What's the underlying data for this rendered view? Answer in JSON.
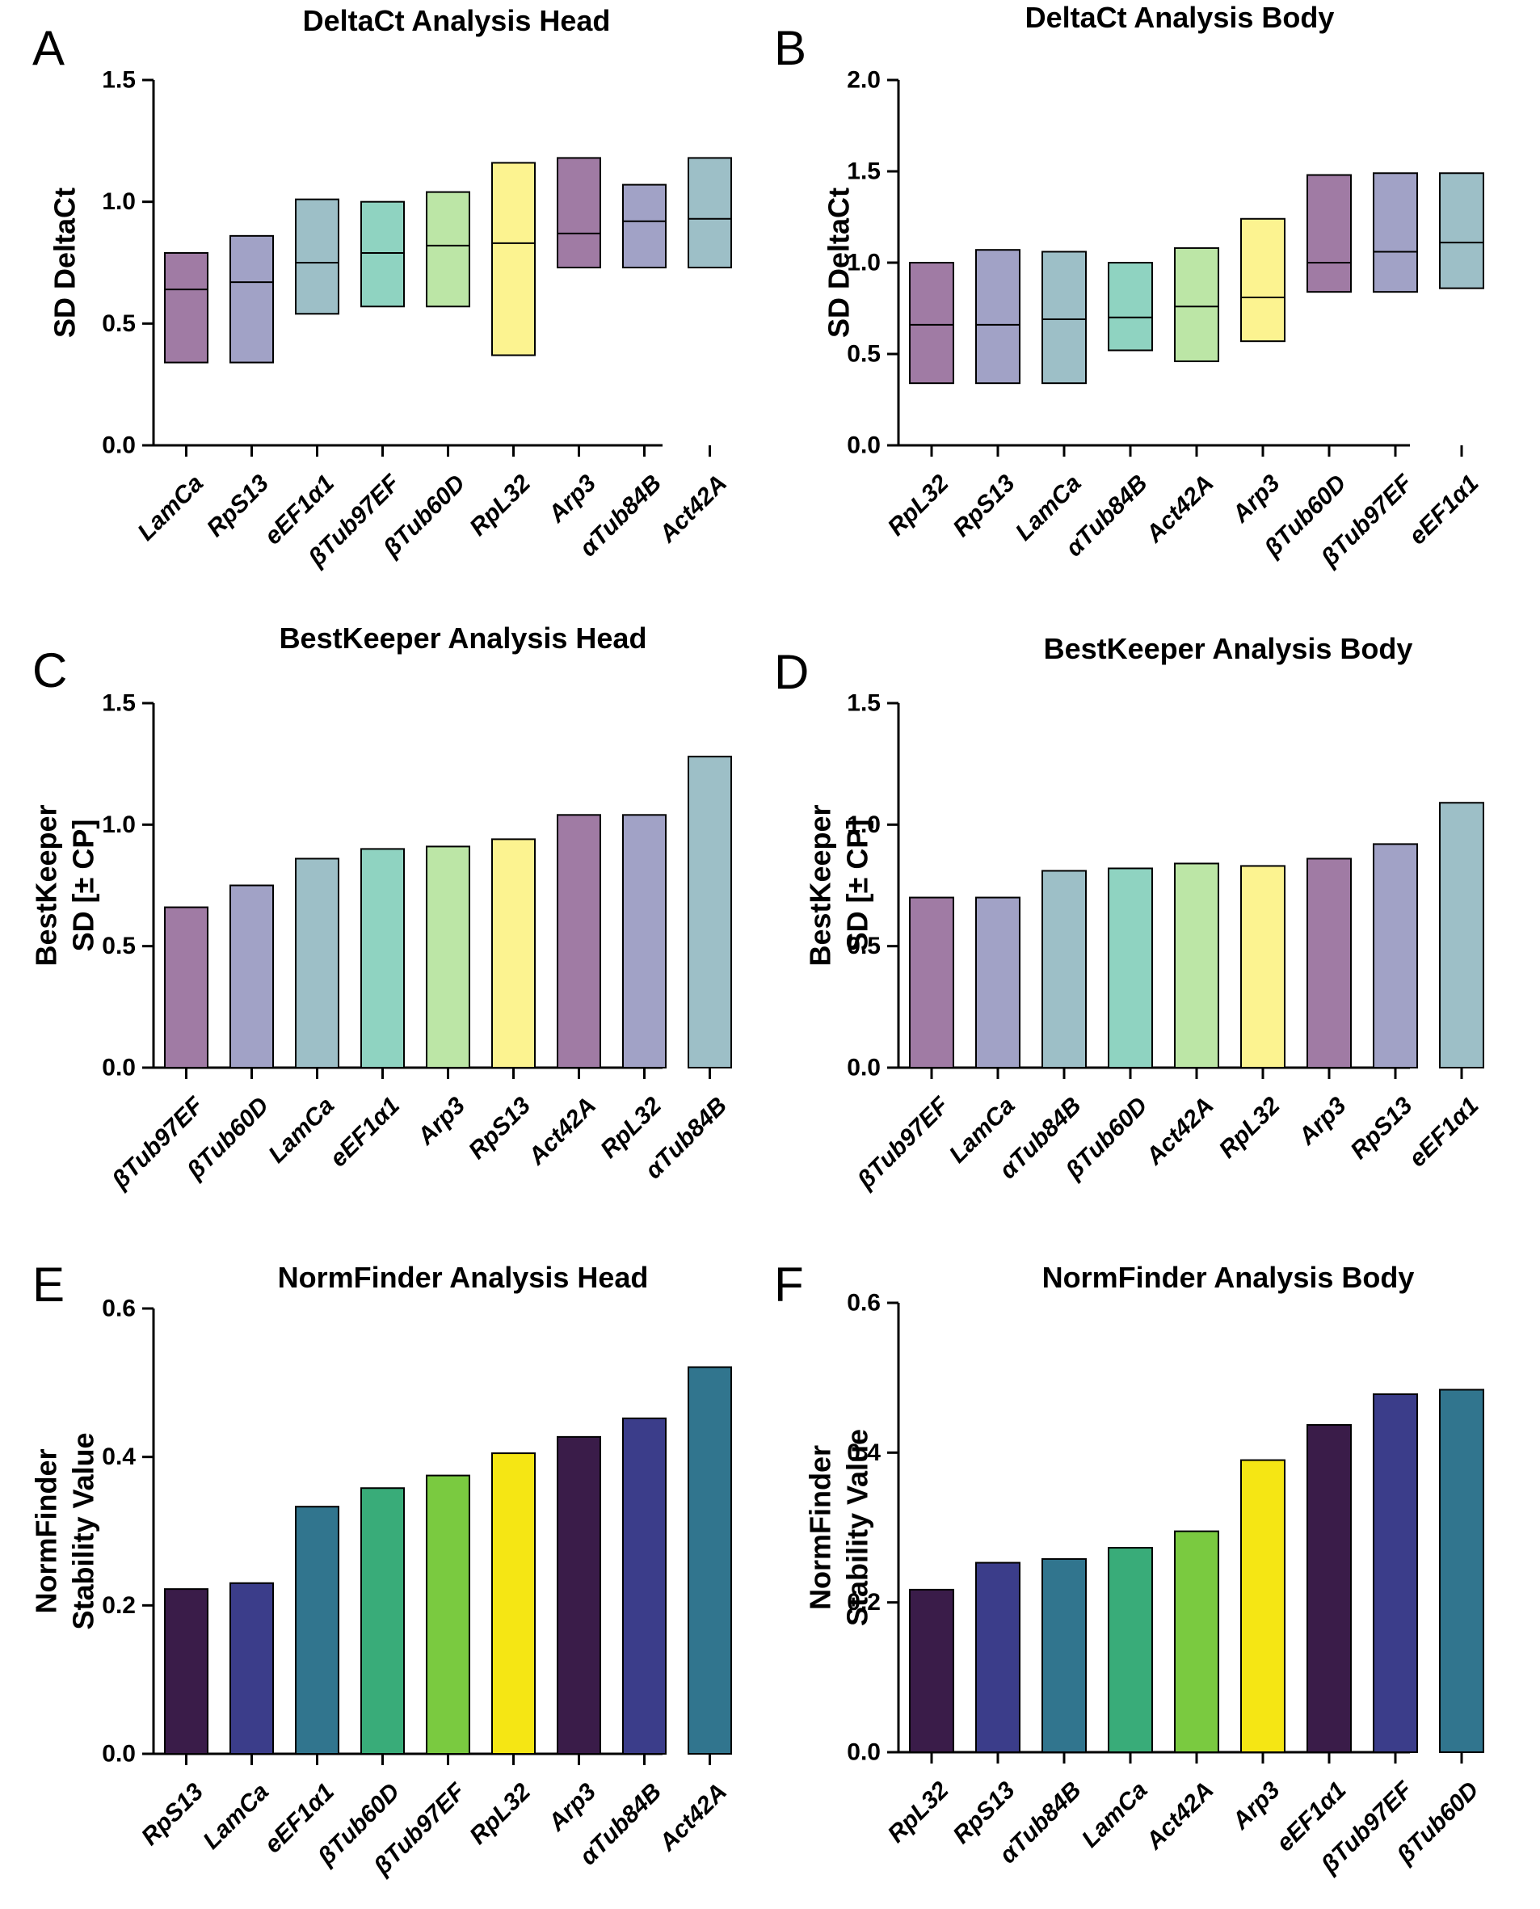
{
  "colors": {
    "pastel": [
      "#A07BA4",
      "#A1A2C6",
      "#9DBFC7",
      "#8FD3C1",
      "#BCE6A6",
      "#FCF390"
    ],
    "viridis": [
      "#3A1C49",
      "#3B3D8A",
      "#31758E",
      "#39AC79",
      "#7ACA40",
      "#F5E614"
    ]
  },
  "chart_data": [
    {
      "id": "A",
      "panel_letter": "A",
      "type": "floating_bar",
      "title": "DeltaCt Analysis Head",
      "ylabel_lines": [
        "SD DeltaCt"
      ],
      "ylim": [
        0,
        1.5
      ],
      "yticks": [
        "0.0",
        "0.5",
        "1.0",
        "1.5"
      ],
      "categories": [
        "LamCa",
        "RpS13",
        "eEF1α1",
        "βTub97EF",
        "βTub60D",
        "RpL32",
        "Arp3",
        "αTub84B",
        "Act42A"
      ],
      "palette": "pastel",
      "color_index": [
        0,
        1,
        2,
        3,
        4,
        5,
        0,
        1,
        2
      ],
      "min": [
        0.34,
        0.34,
        0.54,
        0.57,
        0.57,
        0.37,
        0.73,
        0.73,
        0.73
      ],
      "mean": [
        0.64,
        0.67,
        0.75,
        0.79,
        0.82,
        0.83,
        0.87,
        0.92,
        0.93
      ],
      "max": [
        0.79,
        0.86,
        1.01,
        1.0,
        1.04,
        1.16,
        1.18,
        1.07,
        1.18
      ]
    },
    {
      "id": "B",
      "panel_letter": "B",
      "type": "floating_bar",
      "title": "DeltaCt Analysis Body",
      "ylabel_lines": [
        "SD DeltaCt"
      ],
      "ylim": [
        0,
        2.0
      ],
      "yticks": [
        "0.0",
        "0.5",
        "1.0",
        "1.5",
        "2.0"
      ],
      "categories": [
        "RpL32",
        "RpS13",
        "LamCa",
        "αTub84B",
        "Act42A",
        "Arp3",
        "βTub60D",
        "βTub97EF",
        "eEF1α1"
      ],
      "palette": "pastel",
      "color_index": [
        0,
        1,
        2,
        3,
        4,
        5,
        0,
        1,
        2
      ],
      "min": [
        0.34,
        0.34,
        0.34,
        0.52,
        0.46,
        0.57,
        0.84,
        0.84,
        0.86
      ],
      "mean": [
        0.66,
        0.66,
        0.69,
        0.7,
        0.76,
        0.81,
        1.0,
        1.06,
        1.11
      ],
      "max": [
        1.0,
        1.07,
        1.06,
        1.0,
        1.08,
        1.24,
        1.48,
        1.49,
        1.49
      ]
    },
    {
      "id": "C",
      "panel_letter": "C",
      "type": "bar",
      "title": "BestKeeper Analysis Head",
      "ylabel_lines": [
        "BestKeeper",
        "SD [± CP]"
      ],
      "ylim": [
        0,
        1.5
      ],
      "yticks": [
        "0.0",
        "0.5",
        "1.0",
        "1.5"
      ],
      "categories": [
        "βTub97EF",
        "βTub60D",
        "LamCa",
        "eEF1α1",
        "Arp3",
        "RpS13",
        "Act42A",
        "RpL32",
        "αTub84B"
      ],
      "palette": "pastel",
      "color_index": [
        0,
        1,
        2,
        3,
        4,
        5,
        0,
        1,
        2
      ],
      "values": [
        0.66,
        0.75,
        0.86,
        0.9,
        0.91,
        0.94,
        1.04,
        1.04,
        1.28
      ]
    },
    {
      "id": "D",
      "panel_letter": "D",
      "type": "bar",
      "title": "BestKeeper Analysis Body",
      "ylabel_lines": [
        "BestKeeper",
        "SD [± CP]"
      ],
      "ylim": [
        0,
        1.5
      ],
      "yticks": [
        "0.0",
        "0.5",
        "1.0",
        "1.5"
      ],
      "categories": [
        "βTub97EF",
        "LamCa",
        "αTub84B",
        "βTub60D",
        "Act42A",
        "RpL32",
        "Arp3",
        "RpS13",
        "eEF1α1"
      ],
      "palette": "pastel",
      "color_index": [
        0,
        1,
        2,
        3,
        4,
        5,
        0,
        1,
        2
      ],
      "values": [
        0.7,
        0.7,
        0.81,
        0.82,
        0.84,
        0.83,
        0.86,
        0.92,
        1.09
      ]
    },
    {
      "id": "E",
      "panel_letter": "E",
      "type": "bar",
      "title": "NormFinder Analysis Head",
      "ylabel_lines": [
        "NormFinder",
        "Stability Value"
      ],
      "ylim": [
        0,
        0.6
      ],
      "yticks": [
        "0.0",
        "0.2",
        "0.4",
        "0.6"
      ],
      "categories": [
        "RpS13",
        "LamCa",
        "eEF1α1",
        "βTub60D",
        "βTub97EF",
        "RpL32",
        "Arp3",
        "αTub84B",
        "Act42A"
      ],
      "palette": "viridis",
      "color_index": [
        0,
        1,
        2,
        3,
        4,
        5,
        0,
        1,
        2
      ],
      "values": [
        0.222,
        0.23,
        0.333,
        0.358,
        0.375,
        0.405,
        0.427,
        0.452,
        0.521
      ]
    },
    {
      "id": "F",
      "panel_letter": "F",
      "type": "bar",
      "title": "NormFinder Analysis Body",
      "ylabel_lines": [
        "NormFinder",
        "Stability Value"
      ],
      "ylim": [
        0,
        0.6
      ],
      "yticks": [
        "0.0",
        "0.2",
        "0.4",
        "0.6"
      ],
      "categories": [
        "RpL32",
        "RpS13",
        "αTub84B",
        "LamCa",
        "Act42A",
        "Arp3",
        "eEF1α1",
        "βTub97EF",
        "βTub60D"
      ],
      "palette": "viridis",
      "color_index": [
        0,
        1,
        2,
        3,
        4,
        5,
        0,
        1,
        2
      ],
      "values": [
        0.217,
        0.253,
        0.258,
        0.273,
        0.295,
        0.39,
        0.437,
        0.478,
        0.484
      ]
    }
  ]
}
